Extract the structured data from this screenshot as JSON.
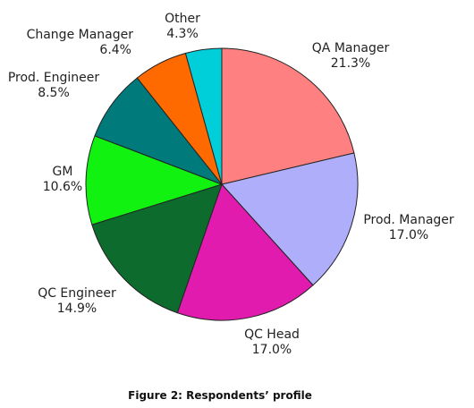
{
  "chart_data": {
    "type": "pie",
    "caption": "Figure 2: Respondents’ profile",
    "slices": [
      {
        "label": "QA Manager",
        "value": 21.3,
        "value_label": "21.3%",
        "color": "#FF8080"
      },
      {
        "label": "Prod. Manager",
        "value": 17.0,
        "value_label": "17.0%",
        "color": "#AEAEFB"
      },
      {
        "label": "QC Head",
        "value": 17.0,
        "value_label": "17.0%",
        "color": "#E01BAE"
      },
      {
        "label": "QC Engineer",
        "value": 14.9,
        "value_label": "14.9%",
        "color": "#0C6B2D"
      },
      {
        "label": "GM",
        "value": 10.6,
        "value_label": "10.6%",
        "color": "#11F211"
      },
      {
        "label": "Prod. Engineer",
        "value": 8.5,
        "value_label": "8.5%",
        "color": "#007A7A"
      },
      {
        "label": "Change Manager",
        "value": 6.4,
        "value_label": "6.4%",
        "color": "#FF6A00"
      },
      {
        "label": "Other",
        "value": 4.3,
        "value_label": "4.3%",
        "color": "#00CED8"
      }
    ]
  }
}
